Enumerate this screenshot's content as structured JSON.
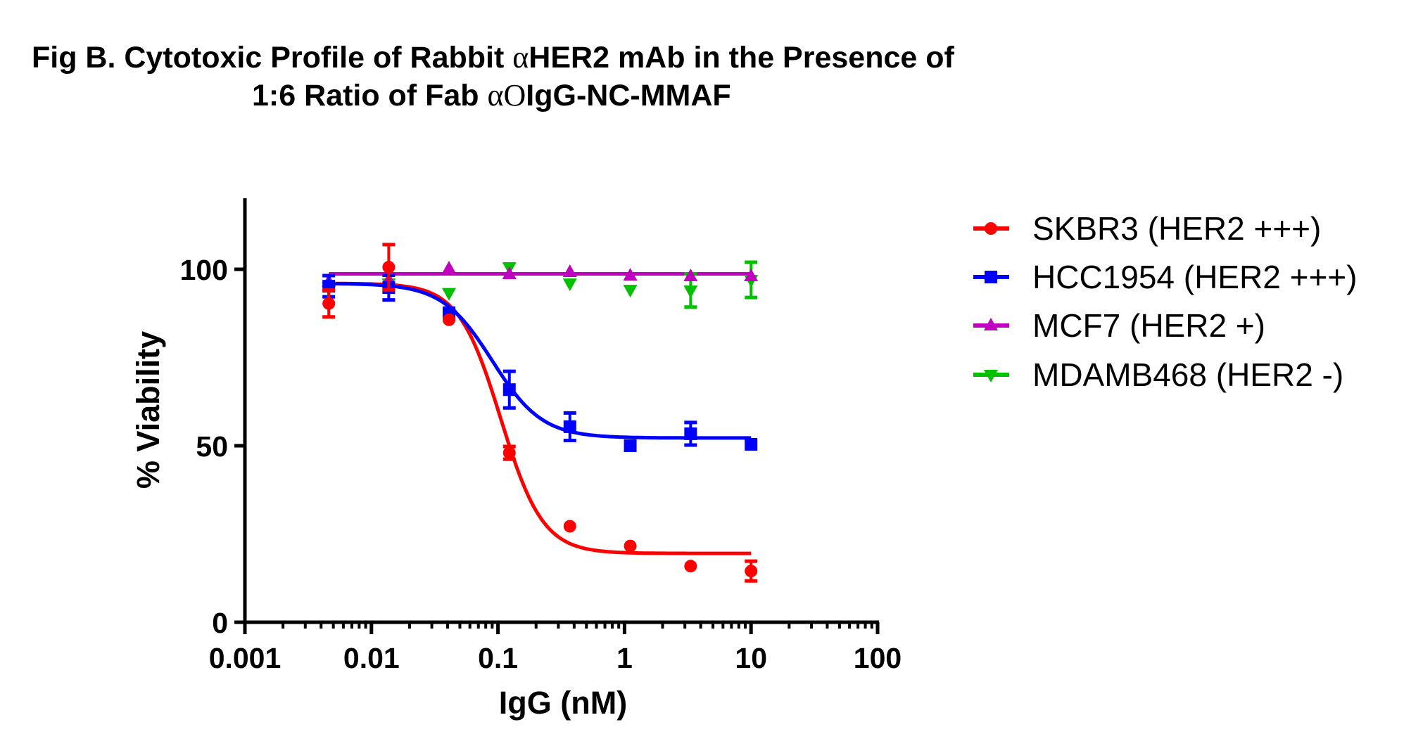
{
  "title": {
    "line1_pre": "Fig B. Cytotoxic Profile of Rabbit ",
    "line1_sym": "α",
    "line1_post": "HER2 mAb in the Presence of",
    "line2_pre": "1:6 Ratio of Fab ",
    "line2_sym": "αO",
    "line2_post": "IgG-NC-MMAF"
  },
  "chart_data": {
    "type": "scatter",
    "title": "Fig B. Cytotoxic Profile of Rabbit αHER2 mAb in the Presence of 1:6 Ratio of Fab αOIgG-NC-MMAF",
    "xlabel": "IgG (nM)",
    "ylabel": "% Viability",
    "xscale": "log",
    "xlim": [
      0.001,
      100
    ],
    "ylim": [
      0,
      120
    ],
    "xticks": [
      0.001,
      0.01,
      0.1,
      1,
      10,
      100
    ],
    "xtick_labels": [
      "0.001",
      "0.01",
      "0.1",
      "1",
      "10",
      "100"
    ],
    "yticks": [
      0,
      50,
      100
    ],
    "ytick_labels": [
      "0",
      "50",
      "100"
    ],
    "grid": false,
    "legend_position": "right",
    "x": [
      0.0046,
      0.0137,
      0.041,
      0.123,
      0.37,
      1.11,
      3.33,
      10
    ],
    "series": [
      {
        "name": "SKBR3 (HER2 +++)",
        "color": "#FF0000",
        "marker": "circle",
        "values": [
          90.3,
          100.6,
          85.7,
          48.0,
          27.2,
          21.6,
          15.9,
          14.5
        ],
        "errors": [
          3.8,
          6.4,
          0,
          1.8,
          0,
          0,
          0,
          2.8
        ],
        "fit": {
          "top": 96,
          "bottom": 19.5,
          "ic50": 0.105,
          "hill": 2.6
        }
      },
      {
        "name": "HCC1954 (HER2 +++)",
        "color": "#0000FF",
        "marker": "square",
        "values": [
          95.2,
          94.8,
          87.7,
          65.9,
          55.4,
          50.0,
          53.4,
          50.4
        ],
        "errors": [
          3.0,
          3.5,
          0,
          5.2,
          3.9,
          0,
          3.2,
          0
        ],
        "fit": {
          "top": 96,
          "bottom": 52.2,
          "ic50": 0.09,
          "hill": 2.2
        }
      },
      {
        "name": "MCF7 (HER2 +)",
        "color": "#BF00BF",
        "marker": "triangle-up",
        "values": [
          96.5,
          97.0,
          100.2,
          98.6,
          99.2,
          98.2,
          98.0,
          98.0
        ],
        "errors": [
          0,
          0,
          0,
          0,
          0,
          0,
          0,
          0
        ],
        "fit": {
          "top": 98.7,
          "bottom": 98.7,
          "ic50": 1,
          "hill": 1
        }
      },
      {
        "name": "MDAMB468 (HER2 -)",
        "color": "#00C000",
        "marker": "triangle-down",
        "values": [
          95.0,
          96.0,
          93.3,
          100.6,
          96.0,
          94.2,
          94.0,
          97.0
        ],
        "errors": [
          0,
          0,
          0,
          0,
          0,
          0,
          4.7,
          5.0
        ],
        "fit": null
      }
    ]
  }
}
